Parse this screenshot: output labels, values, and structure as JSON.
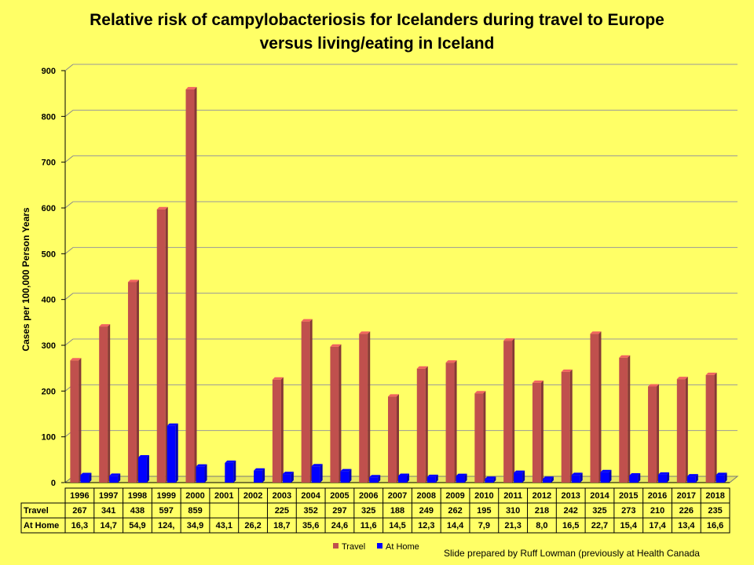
{
  "chart_data": {
    "type": "bar",
    "title_lines": [
      "Relative risk of campylobacteriosis for Icelanders during travel to Europe",
      "versus living/eating in Iceland"
    ],
    "ylabel": "Cases per 100,000 Person Years",
    "ylim": [
      0,
      900
    ],
    "yticks": [
      0,
      100,
      200,
      300,
      400,
      500,
      600,
      700,
      800,
      900
    ],
    "grid": true,
    "legend_position": "bottom",
    "categories": [
      "1996",
      "1997",
      "1998",
      "1999",
      "2000",
      "2001",
      "2002",
      "2003",
      "2004",
      "2005",
      "2006",
      "2007",
      "2008",
      "2009",
      "2010",
      "2011",
      "2012",
      "2013",
      "2014",
      "2015",
      "2016",
      "2017",
      "2018"
    ],
    "series": [
      {
        "name": "Travel",
        "color": "#C0504D",
        "values": [
          267,
          341,
          438,
          597,
          859,
          null,
          null,
          225,
          352,
          297,
          325,
          188,
          249,
          262,
          195,
          310,
          218,
          242,
          325,
          273,
          210,
          226,
          235
        ],
        "table_labels": [
          "267",
          "341",
          "438",
          "597",
          "859",
          "",
          "",
          "225",
          "352",
          "297",
          "325",
          "188",
          "249",
          "262",
          "195",
          "310",
          "218",
          "242",
          "325",
          "273",
          "210",
          "226",
          "235"
        ]
      },
      {
        "name": "At Home",
        "color": "#0000FF",
        "values": [
          16.3,
          14.7,
          54.9,
          124,
          34.9,
          43.1,
          26.2,
          18.7,
          35.6,
          24.6,
          11.6,
          14.5,
          12.3,
          14.4,
          7.9,
          21.3,
          8.0,
          16.5,
          22.7,
          15.4,
          17.4,
          13.4,
          16.6
        ],
        "table_labels": [
          "16,3",
          "14,7",
          "54,9",
          "124,",
          "34,9",
          "43,1",
          "26,2",
          "18,7",
          "35,6",
          "24,6",
          "11,6",
          "14,5",
          "12,3",
          "14,4",
          "7,9",
          "21,3",
          "8,0",
          "16,5",
          "22,7",
          "15,4",
          "17,4",
          "13,4",
          "16,6"
        ]
      }
    ],
    "table_row_labels": [
      "Travel",
      "At Home"
    ]
  },
  "credit": "Slide prepared by Ruff Lowman (previously at Health Canada"
}
